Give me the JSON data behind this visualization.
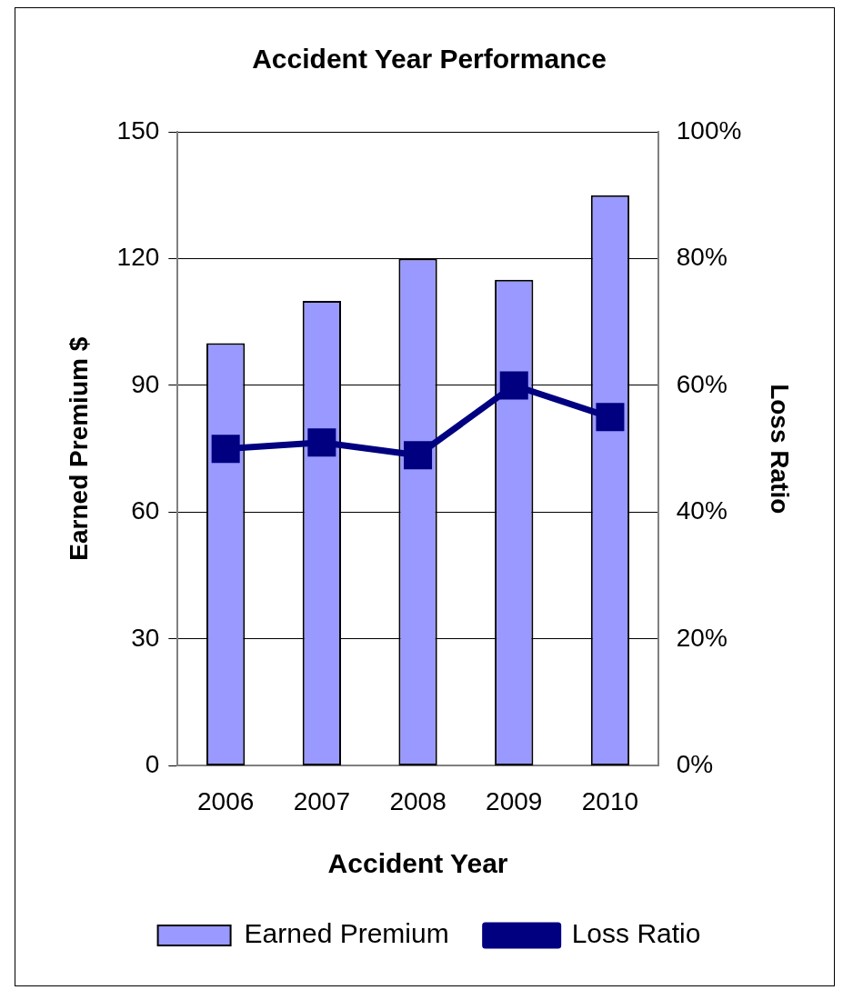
{
  "chart_data": {
    "type": "bar",
    "title": "Accident Year Performance",
    "xlabel": "Accident Year",
    "ylabel": "Earned Premium $",
    "y2label": "Loss Ratio",
    "categories": [
      "2006",
      "2007",
      "2008",
      "2009",
      "2010"
    ],
    "series": [
      {
        "name": "Earned Premium",
        "color": "#9999ff",
        "values": [
          100,
          110,
          120,
          115,
          135
        ]
      },
      {
        "name": "Loss Ratio",
        "type": "line",
        "axis": "y2",
        "color": "#000080",
        "values": [
          50,
          51,
          49,
          60,
          55
        ]
      }
    ],
    "ylim": [
      0,
      150
    ],
    "yticks": [
      0,
      30,
      60,
      90,
      120,
      150
    ],
    "y2lim": [
      0,
      100
    ],
    "y2ticks": [
      {
        "value": 0,
        "label": "0%"
      },
      {
        "value": 20,
        "label": "20%"
      },
      {
        "value": 40,
        "label": "40%"
      },
      {
        "value": 60,
        "label": "60%"
      },
      {
        "value": 80,
        "label": "80%"
      },
      {
        "value": 100,
        "label": "100%"
      }
    ],
    "grid": "y",
    "legend": "bottom",
    "marker": "square",
    "line_style": "solid"
  }
}
